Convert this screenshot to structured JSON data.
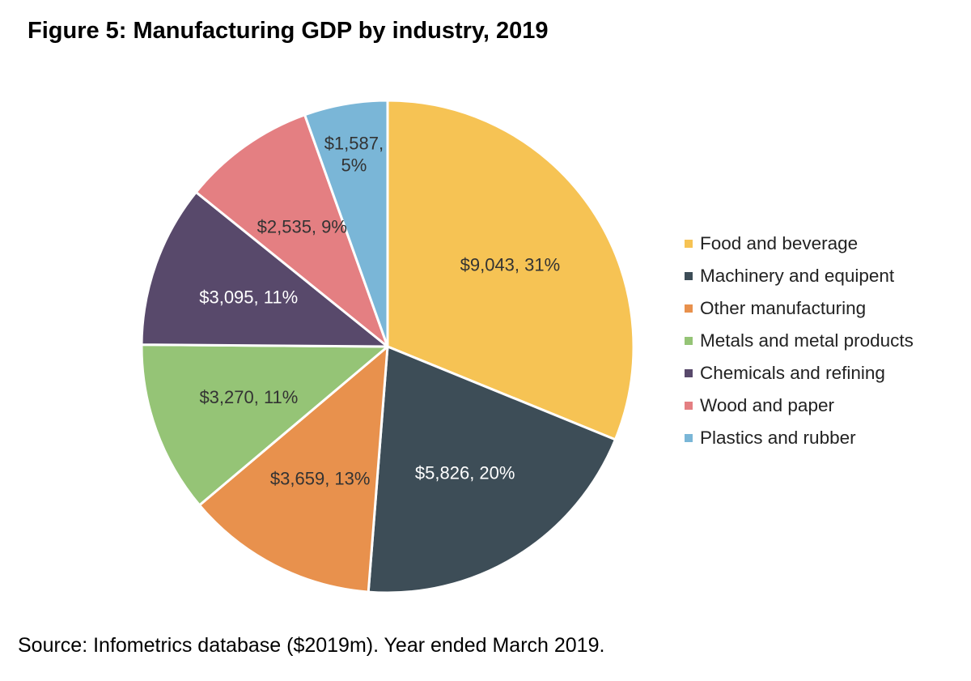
{
  "title": "Figure 5: Manufacturing GDP by industry, 2019",
  "source": "Source: Infometrics database ($2019m). Year ended March 2019.",
  "chart_data": {
    "type": "pie",
    "title": "Figure 5: Manufacturing GDP by industry, 2019",
    "legend_position": "right",
    "slices": [
      {
        "name": "Food and beverage",
        "value": 9043,
        "percent": 31,
        "label": "$9,043, 31%",
        "color": "#F6C354",
        "label_color": "#333333"
      },
      {
        "name": "Machinery and equipent",
        "value": 5826,
        "percent": 20,
        "label": "$5,826, 20%",
        "color": "#3D4D57",
        "label_color": "#ffffff"
      },
      {
        "name": "Other manufacturing",
        "value": 3659,
        "percent": 13,
        "label": "$3,659, 13%",
        "color": "#E8914D",
        "label_color": "#333333"
      },
      {
        "name": "Metals and metal products",
        "value": 3270,
        "percent": 11,
        "label": "$3,270, 11%",
        "color": "#95C476",
        "label_color": "#333333"
      },
      {
        "name": "Chemicals and refining",
        "value": 3095,
        "percent": 11,
        "label": "$3,095, 11%",
        "color": "#58496B",
        "label_color": "#ffffff"
      },
      {
        "name": "Wood and paper",
        "value": 2535,
        "percent": 9,
        "label": "$2,535, 9%",
        "color": "#E47F82",
        "label_color": "#333333"
      },
      {
        "name": "Plastics and rubber",
        "value": 1587,
        "percent": 5,
        "label": "$1,587, 5%",
        "color": "#7AB6D7",
        "label_color": "#333333"
      }
    ]
  }
}
